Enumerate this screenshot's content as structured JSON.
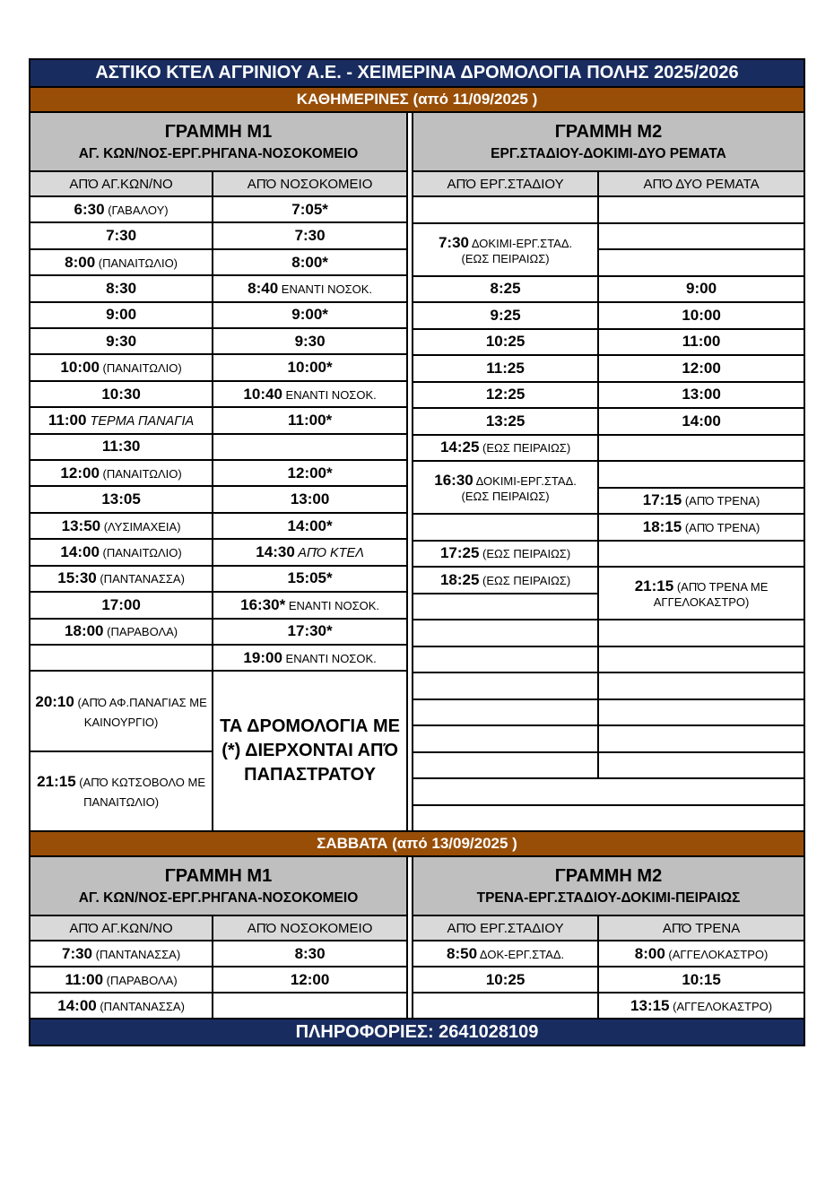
{
  "page": {
    "title": "ΑΣΤΙΚΟ ΚΤΕΛ ΑΓΡΙΝΙΟΥ Α.Ε. - ΧΕΙΜΕΡΙΝΑ ΔΡΟΜΟΛΟΓΙΑ ΠΟΛΗΣ 2025/2026",
    "info": "ΠΛΗΡΟΦΟΡΙΕΣ: 2641028109"
  },
  "colors": {
    "navy": "#182C5F",
    "brown": "#984E07",
    "band_gray": "#BFBFBF",
    "col_gray": "#D9D9D9",
    "border_black": "#000000"
  },
  "weekday": {
    "banner": "ΚΑΘΗΜΕΡΙΝΕΣ (από 11/09/2025 )",
    "m1": {
      "line_label": "ΓΡΑΜΜΗ Μ1",
      "route": "ΑΓ. ΚΩΝ/ΝΟΣ-ΕΡΓ.ΡΗΓΑΝΑ-ΝΟΣΟΚΟΜΕΙΟ",
      "columns": [
        "ΑΠΌ ΑΓ.ΚΩΝ/ΝΟ",
        "ΑΠΌ ΝΟΣΟΚΟΜΕΙΟ"
      ],
      "rows": [
        {
          "cells": [
            {
              "t": "6:30",
              "n": "(ΓΑΒΑΛΟΥ)"
            },
            {
              "t": "7:05*"
            }
          ]
        },
        {
          "cells": [
            {
              "t": "7:30"
            },
            {
              "t": "7:30"
            }
          ]
        },
        {
          "cells": [
            {
              "t": "8:00",
              "n": "(ΠΑΝΑΙΤΩΛΙΟ)"
            },
            {
              "t": "8:00*"
            }
          ]
        },
        {
          "cells": [
            {
              "t": "8:30"
            },
            {
              "t": "8:40",
              "n": "ΕΝΑΝΤΙ ΝΟΣΟΚ."
            }
          ]
        },
        {
          "cells": [
            {
              "t": "9:00"
            },
            {
              "t": "9:00*"
            }
          ]
        },
        {
          "cells": [
            {
              "t": "9:30"
            },
            {
              "t": "9:30"
            }
          ]
        },
        {
          "cells": [
            {
              "t": "10:00",
              "n": "(ΠΑΝΑΙΤΩΛΙΟ)"
            },
            {
              "t": "10:00*"
            }
          ]
        },
        {
          "cells": [
            {
              "t": "10:30"
            },
            {
              "t": "10:40",
              "n": "ΕΝΑΝΤΙ ΝΟΣΟΚ."
            }
          ]
        },
        {
          "cells": [
            {
              "t": "11:00",
              "n": "ΤΕΡΜΑ ΠΑΝΑΓΙΑ",
              "i": true
            },
            {
              "t": "11:00*"
            }
          ]
        },
        {
          "cells": [
            {
              "t": "11:30"
            },
            {}
          ]
        },
        {
          "cells": [
            {
              "t": "12:00",
              "n": "(ΠΑΝΑΙΤΩΛΙΟ)"
            },
            {
              "t": "12:00*"
            }
          ]
        },
        {
          "cells": [
            {
              "t": "13:05"
            },
            {
              "t": "13:00"
            }
          ]
        },
        {
          "cells": [
            {
              "t": "13:50",
              "n": "(ΛΥΣΙΜΑΧΕΙΑ)"
            },
            {
              "t": "14:00*"
            }
          ]
        },
        {
          "cells": [
            {
              "t": "14:00",
              "n": "(ΠΑΝΑΙΤΩΛΙΟ)"
            },
            {
              "t": "14:30",
              "n": "ΑΠΌ ΚΤΕΛ",
              "i": true
            }
          ]
        },
        {
          "cells": [
            {
              "t": "15:30",
              "n": "(ΠΑΝΤΑΝΑΣΣΑ)"
            },
            {
              "t": "15:05*"
            }
          ]
        },
        {
          "cells": [
            {
              "t": "17:00"
            },
            {
              "t": "16:30*",
              "n": "ΕΝΑΝΤΙ ΝΟΣΟΚ."
            }
          ]
        },
        {
          "cells": [
            {
              "t": "18:00",
              "n": "(ΠΑΡΑΒΟΛΑ)"
            },
            {
              "t": "17:30*"
            }
          ]
        },
        {
          "cells": [
            {},
            {
              "t": "19:00",
              "n": "ΕΝΑΝΤΙ ΝΟΣΟΚ."
            }
          ]
        },
        {
          "tall": true,
          "cells": [
            {
              "t": "20:10",
              "n": "(ΑΠΌ ΑΦ.ΠΑΝΑΓΙΑΣ ΜΕ ΚΑΙΝΟΥΡΓΙΟ)"
            },
            {
              "big": "ΤΑ ΔΡΟΜΟΛΟΓΙΑ ΜΕ (*) ΔΙΕΡΧΟΝΤΑΙ ΑΠΌ ΠΑΠΑΣΤΡΑΤΟΥ",
              "rs": 2
            }
          ]
        },
        {
          "tall": true,
          "cells": [
            {
              "t": "21:15",
              "n": "(ΑΠΌ ΚΩΤΣΟΒΟΛΟ ΜΕ ΠΑΝΑΙΤΩΛΙΟ)"
            }
          ]
        }
      ]
    },
    "m2": {
      "line_label": "ΓΡΑΜΜΗ Μ2",
      "route": "ΕΡΓ.ΣΤΑΔΙΟΥ-ΔΟΚΙΜΙ-ΔΥΟ ΡΕΜΑΤΑ",
      "columns": [
        "ΑΠΌ ΕΡΓ.ΣΤΑΔΙΟΥ",
        "ΑΠΌ ΔΥΟ ΡΕΜΑΤΑ"
      ],
      "rows": [
        {
          "cells": [
            {},
            {}
          ]
        },
        {
          "cells": [
            {
              "t": "7:30",
              "n": "ΔΟΚΙΜΙ-ΕΡΓ.ΣΤΑΔ.",
              "n2": "(ΕΩΣ ΠΕΙΡΑΙΩΣ)",
              "rs": 2
            },
            {}
          ]
        },
        {
          "cells": [
            {}
          ]
        },
        {
          "cells": [
            {
              "t": "8:25"
            },
            {
              "t": "9:00"
            }
          ]
        },
        {
          "cells": [
            {
              "t": "9:25"
            },
            {
              "t": "10:00"
            }
          ]
        },
        {
          "cells": [
            {
              "t": "10:25"
            },
            {
              "t": "11:00"
            }
          ]
        },
        {
          "cells": [
            {
              "t": "11:25"
            },
            {
              "t": "12:00"
            }
          ]
        },
        {
          "cells": [
            {
              "t": "12:25"
            },
            {
              "t": "13:00"
            }
          ]
        },
        {
          "cells": [
            {
              "t": "13:25"
            },
            {
              "t": "14:00"
            }
          ]
        },
        {
          "cells": [
            {
              "t": "14:25",
              "n": "(ΕΩΣ ΠΕΙΡΑΙΩΣ)"
            },
            {}
          ]
        },
        {
          "cells": [
            {
              "t": "16:30",
              "n": "ΔΟΚΙΜΙ-ΕΡΓ.ΣΤΑΔ.",
              "n2": "(ΕΩΣ ΠΕΙΡΑΙΩΣ)",
              "rs": 2
            },
            {}
          ]
        },
        {
          "cells": [
            {
              "t": "17:15",
              "n": "(ΑΠΌ ΤΡΕΝΑ)"
            }
          ]
        },
        {
          "cells": [
            {},
            {
              "t": "18:15",
              "n": "(ΑΠΌ ΤΡΕΝΑ)"
            }
          ]
        },
        {
          "cells": [
            {
              "t": "17:25",
              "n": "(ΕΩΣ ΠΕΙΡΑΙΩΣ)"
            },
            {}
          ]
        },
        {
          "cells": [
            {
              "t": "18:25",
              "n": "(ΕΩΣ ΠΕΙΡΑΙΩΣ)"
            },
            {
              "t": "21:15",
              "n": "(ΑΠΌ ΤΡΕΝΑ ΜΕ ΑΓΓΕΛΟΚΑΣΤΡΟ)",
              "rs": 2
            }
          ]
        },
        {
          "cells": [
            {}
          ]
        },
        {
          "cells": [
            {},
            {}
          ]
        },
        {
          "cells": [
            {},
            {}
          ]
        },
        {
          "cells": [
            {},
            {}
          ]
        },
        {
          "cells": [
            {},
            {}
          ]
        },
        {
          "cells": [
            {},
            {}
          ]
        },
        {
          "cells": [
            {},
            {}
          ]
        },
        {
          "cells": [
            {
              "cs": 2
            }
          ]
        },
        {
          "cells": [
            {
              "cs": 2
            }
          ]
        }
      ]
    }
  },
  "saturday": {
    "banner": "ΣΑΒΒΑΤΑ (από 13/09/2025 )",
    "m1": {
      "line_label": "ΓΡΑΜΜΗ Μ1",
      "route": "ΑΓ. ΚΩΝ/ΝΟΣ-ΕΡΓ.ΡΗΓΑΝΑ-ΝΟΣΟΚΟΜΕΙΟ",
      "columns": [
        "ΑΠΌ ΑΓ.ΚΩΝ/ΝΟ",
        "ΑΠΌ ΝΟΣΟΚΟΜΕΙΟ"
      ],
      "rows": [
        {
          "cells": [
            {
              "t": "7:30",
              "n": "(ΠΑΝΤΑΝΑΣΣΑ)"
            },
            {
              "t": "8:30"
            }
          ]
        },
        {
          "cells": [
            {
              "t": "11:00",
              "n": "(ΠΑΡΑΒΟΛΑ)"
            },
            {
              "t": "12:00"
            }
          ]
        },
        {
          "cells": [
            {
              "t": "14:00",
              "n": "(ΠΑΝΤΑΝΑΣΣΑ)"
            },
            {}
          ]
        }
      ]
    },
    "m2": {
      "line_label": "ΓΡΑΜΜΗ Μ2",
      "route": "ΤΡΕΝΑ-ΕΡΓ.ΣΤΑΔΙΟΥ-ΔΟΚΙΜΙ-ΠΕΙΡΑΙΩΣ",
      "columns": [
        "ΑΠΌ ΕΡΓ.ΣΤΑΔΙΟΥ",
        "ΑΠΌ ΤΡΕΝΑ"
      ],
      "rows": [
        {
          "cells": [
            {
              "t": "8:50",
              "n": "ΔΟΚ-ΕΡΓ.ΣΤΑΔ."
            },
            {
              "t": "8:00",
              "n": "(ΑΓΓΕΛΟΚΑΣΤΡΟ)"
            }
          ]
        },
        {
          "cells": [
            {
              "t": "10:25"
            },
            {
              "t": "10:15"
            }
          ]
        },
        {
          "cells": [
            {},
            {
              "t": "13:15",
              "n": "(ΑΓΓΕΛΟΚΑΣΤΡΟ)"
            }
          ]
        }
      ]
    }
  }
}
